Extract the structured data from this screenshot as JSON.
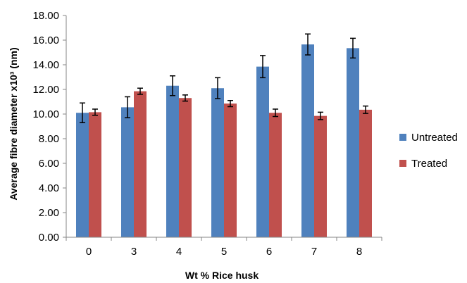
{
  "chart_data": {
    "type": "bar",
    "categories": [
      "0",
      "3",
      "4",
      "5",
      "6",
      "7",
      "8"
    ],
    "series": [
      {
        "name": "Untreated",
        "color": "#4f81bd",
        "values": [
          10.1,
          10.55,
          12.3,
          12.1,
          13.85,
          15.65,
          15.35
        ],
        "errors": [
          0.8,
          0.85,
          0.8,
          0.85,
          0.9,
          0.85,
          0.8
        ]
      },
      {
        "name": "Treated",
        "color": "#c0504d",
        "values": [
          10.15,
          11.85,
          11.3,
          10.85,
          10.1,
          9.85,
          10.35
        ],
        "errors": [
          0.25,
          0.25,
          0.25,
          0.25,
          0.3,
          0.3,
          0.3
        ]
      }
    ],
    "xlabel": "Wt % Rice husk",
    "ylabel": "Average fibre diameter x10³ (nm)",
    "ylim": [
      0,
      18
    ],
    "ytick_step": 2,
    "ytick_labels": [
      "0.00",
      "2.00",
      "4.00",
      "6.00",
      "8.00",
      "10.00",
      "12.00",
      "14.00",
      "16.00",
      "18.00"
    ],
    "grid": false,
    "legend_position": "right"
  }
}
